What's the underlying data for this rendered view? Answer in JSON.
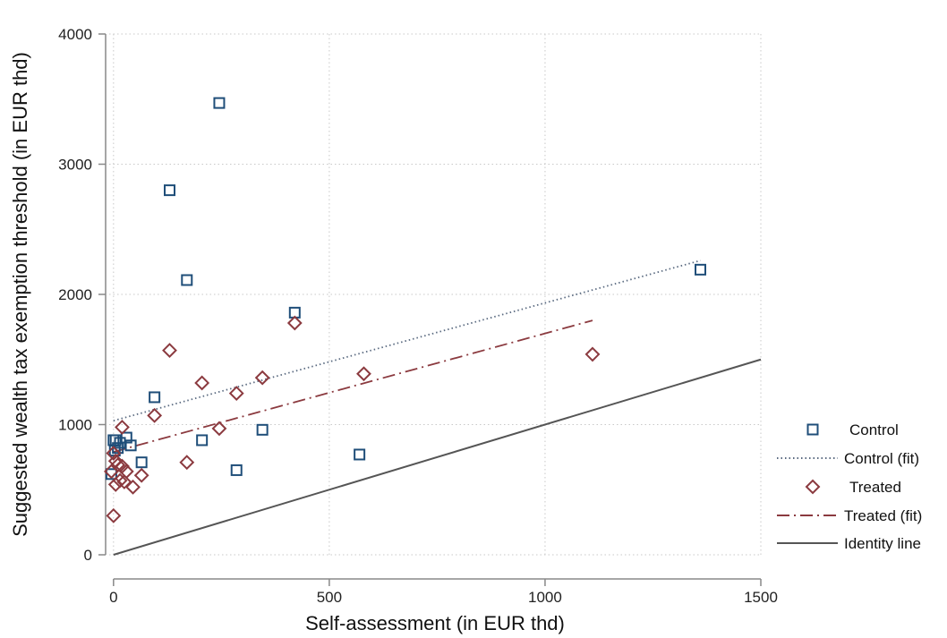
{
  "chart_data": {
    "type": "scatter",
    "title": "",
    "xlabel": "Self-assessment (in EUR thd)",
    "ylabel": "Suggested wealth tax exemption threshold (in EUR thd)",
    "xlim": [
      -10,
      1500
    ],
    "ylim": [
      0,
      4000
    ],
    "xticks": [
      0,
      500,
      1000,
      1500
    ],
    "yticks": [
      0,
      1000,
      2000,
      3000,
      4000
    ],
    "grid": true,
    "legend_position": "right",
    "series": [
      {
        "name": "Control",
        "kind": "scatter",
        "marker": "square",
        "color": "#1f4e79",
        "points": [
          [
            245,
            3470
          ],
          [
            130,
            2800
          ],
          [
            170,
            2110
          ],
          [
            420,
            1860
          ],
          [
            1360,
            2190
          ],
          [
            95,
            1210
          ],
          [
            205,
            880
          ],
          [
            345,
            960
          ],
          [
            285,
            650
          ],
          [
            570,
            770
          ],
          [
            0,
            880
          ],
          [
            5,
            880
          ],
          [
            10,
            820
          ],
          [
            15,
            860
          ],
          [
            30,
            900
          ],
          [
            40,
            840
          ],
          [
            65,
            710
          ],
          [
            3,
            800
          ],
          [
            -5,
            620
          ]
        ]
      },
      {
        "name": "Control (fit)",
        "kind": "line",
        "style": "dotted",
        "color": "#5a6a80",
        "points": [
          [
            0,
            1030
          ],
          [
            1360,
            2260
          ]
        ]
      },
      {
        "name": "Treated",
        "kind": "scatter",
        "marker": "diamond",
        "color": "#8b3a3f",
        "points": [
          [
            420,
            1780
          ],
          [
            130,
            1570
          ],
          [
            1110,
            1540
          ],
          [
            580,
            1390
          ],
          [
            345,
            1360
          ],
          [
            205,
            1320
          ],
          [
            285,
            1240
          ],
          [
            95,
            1070
          ],
          [
            245,
            970
          ],
          [
            170,
            710
          ],
          [
            20,
            980
          ],
          [
            0,
            780
          ],
          [
            5,
            720
          ],
          [
            10,
            690
          ],
          [
            20,
            680
          ],
          [
            30,
            640
          ],
          [
            65,
            610
          ],
          [
            15,
            570
          ],
          [
            25,
            560
          ],
          [
            5,
            540
          ],
          [
            45,
            520
          ],
          [
            -5,
            640
          ],
          [
            0,
            300
          ]
        ]
      },
      {
        "name": "Treated (fit)",
        "kind": "line",
        "style": "dashdot",
        "color": "#8b3a3f",
        "points": [
          [
            0,
            790
          ],
          [
            1110,
            1800
          ]
        ]
      },
      {
        "name": "Identity line",
        "kind": "line",
        "style": "solid",
        "color": "#555555",
        "points": [
          [
            0,
            0
          ],
          [
            1500,
            1500
          ]
        ]
      }
    ]
  },
  "colors": {
    "control": "#1f4e79",
    "treated": "#8b3a3f",
    "identity": "#555555",
    "grid": "#c8c8c8"
  }
}
